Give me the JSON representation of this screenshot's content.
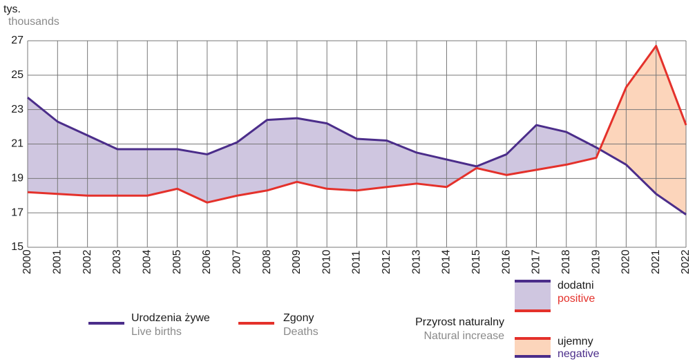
{
  "chart_data": {
    "type": "line",
    "y_unit": "tys.",
    "y_unit_en": "thousands",
    "categories": [
      "2000",
      "2001",
      "2002",
      "2003",
      "2004",
      "2005",
      "2006",
      "2007",
      "2008",
      "2009",
      "2010",
      "2011",
      "2012",
      "2013",
      "2014",
      "2015",
      "2016",
      "2017",
      "2018",
      "2019",
      "2020",
      "2021",
      "2022"
    ],
    "series": [
      {
        "name": "Urodzenia żywe",
        "name_en": "Live births",
        "color": "#4b2d8a",
        "values": [
          23.7,
          22.3,
          21.5,
          20.7,
          20.7,
          20.7,
          20.4,
          21.1,
          22.4,
          22.5,
          22.2,
          21.3,
          21.2,
          20.5,
          20.1,
          19.7,
          20.4,
          22.1,
          21.7,
          20.8,
          19.8,
          18.1,
          16.9
        ]
      },
      {
        "name": "Zgony",
        "name_en": "Deaths",
        "color": "#e4312b",
        "values": [
          18.2,
          18.1,
          18.0,
          18.0,
          18.0,
          18.4,
          17.6,
          18.0,
          18.3,
          18.8,
          18.4,
          18.3,
          18.5,
          18.7,
          18.5,
          19.6,
          19.2,
          19.5,
          19.8,
          20.2,
          24.3,
          26.7,
          22.1
        ]
      }
    ],
    "fill_legend": {
      "title": "Przyrost naturalny",
      "title_en": "Natural increase",
      "positive": "dodatni",
      "positive_en": "positive",
      "positive_color": "#cfc6e0",
      "negative": "ujemny",
      "negative_en": "negative",
      "negative_color": "#fcd5bb"
    },
    "ylim": [
      15,
      27
    ],
    "yticks": [
      15,
      17,
      19,
      21,
      23,
      25,
      27
    ],
    "grid": true
  }
}
